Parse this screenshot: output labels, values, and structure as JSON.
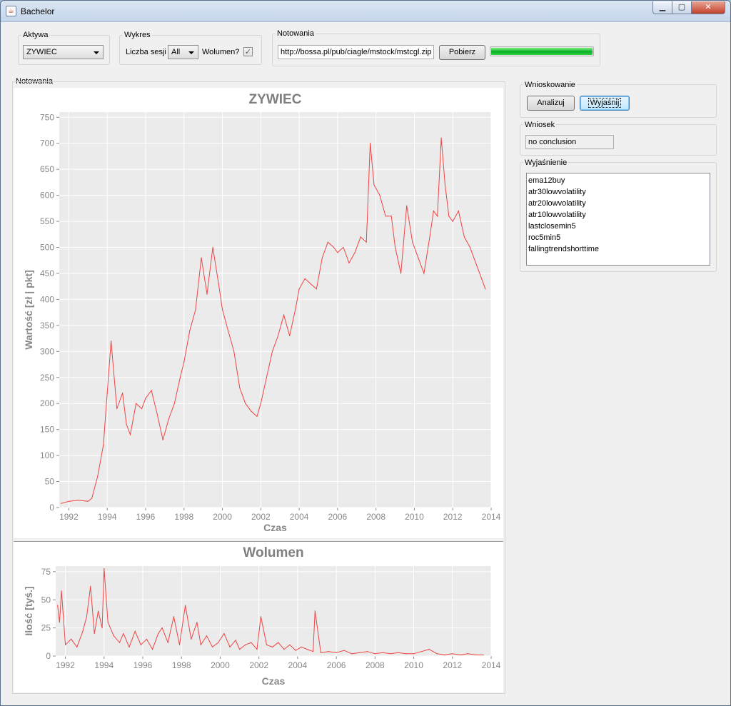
{
  "window": {
    "title": "Bachelor",
    "app_icon": "java-cup-icon",
    "close_glyph": "✕",
    "min_glyph": "▁",
    "max_glyph": "▢"
  },
  "aktywa": {
    "label": "Aktywa",
    "selected": "ZYWIEC"
  },
  "wykres": {
    "label": "Wykres",
    "sessions_label": "Liczba sesji",
    "sessions_value": "All",
    "volume_label": "Wolumen?",
    "volume_checked": true
  },
  "notowania_top": {
    "label": "Notowania",
    "url": "http://bossa.pl/pub/ciagle/mstock/mstcgl.zip",
    "download_button": "Pobierz",
    "progress": 1.0
  },
  "notowania_panel": {
    "label": "Notowania"
  },
  "wnioskowanie": {
    "label": "Wnioskowanie",
    "analyze_button": "Analizuj",
    "explain_button": "Wyjaśnij"
  },
  "wniosek": {
    "label": "Wniosek",
    "value": "no conclusion"
  },
  "wyjasnienie": {
    "label": "Wyjaśnienie",
    "items": [
      "ema12buy",
      "atr30lowvolatility",
      "atr20lowvolatility",
      "atr10lowvolatility",
      "lastclosemin5",
      "roc5min5",
      "fallingtrendshorttime"
    ]
  },
  "colors": {
    "series": "#ee4444",
    "plot_bg": "#ebebeb",
    "axis_text": "#888888",
    "title_text": "#7f7f7f"
  },
  "chart_data": [
    {
      "type": "line",
      "title": "ZYWIEC",
      "xlabel": "Czas",
      "ylabel": "Wartość [zł | pkt]",
      "xlim": [
        1991.5,
        2014.0
      ],
      "ylim": [
        0,
        760
      ],
      "xticks": [
        "1992",
        "1994",
        "1996",
        "1998",
        "2000",
        "2002",
        "2004",
        "2006",
        "2008",
        "2010",
        "2012",
        "2014"
      ],
      "yticks": [
        "0",
        "50",
        "100",
        "150",
        "200",
        "250",
        "300",
        "350",
        "400",
        "450",
        "500",
        "550",
        "600",
        "650",
        "700",
        "750"
      ],
      "grid": true,
      "series": [
        {
          "x": [
            1991.6,
            1992.0,
            1992.5,
            1993.0,
            1993.2,
            1993.5,
            1993.8,
            1994.0,
            1994.2,
            1994.5,
            1994.8,
            1995.0,
            1995.2,
            1995.5,
            1995.8,
            1996.0,
            1996.3,
            1996.6,
            1996.9,
            1997.2,
            1997.5,
            1997.8,
            1998.0,
            1998.3,
            1998.6,
            1998.9,
            1999.2,
            1999.5,
            1999.8,
            2000.0,
            2000.3,
            2000.6,
            2000.9,
            2001.2,
            2001.5,
            2001.8,
            2002.0,
            2002.3,
            2002.6,
            2002.9,
            2003.2,
            2003.5,
            2003.8,
            2004.0,
            2004.3,
            2004.6,
            2004.9,
            2005.2,
            2005.5,
            2005.8,
            2006.0,
            2006.3,
            2006.6,
            2006.9,
            2007.2,
            2007.5,
            2007.7,
            2007.9,
            2008.2,
            2008.5,
            2008.8,
            2009.0,
            2009.3,
            2009.6,
            2009.9,
            2010.2,
            2010.5,
            2010.8,
            2011.0,
            2011.2,
            2011.4,
            2011.6,
            2011.8,
            2012.0,
            2012.3,
            2012.6,
            2012.9,
            2013.2,
            2013.5,
            2013.7
          ],
          "y": [
            8,
            12,
            14,
            12,
            18,
            60,
            120,
            220,
            320,
            190,
            220,
            160,
            140,
            200,
            190,
            210,
            225,
            180,
            130,
            170,
            200,
            250,
            280,
            340,
            380,
            480,
            410,
            500,
            430,
            380,
            340,
            300,
            230,
            200,
            185,
            175,
            200,
            250,
            300,
            330,
            370,
            330,
            380,
            420,
            440,
            430,
            420,
            480,
            510,
            500,
            490,
            500,
            470,
            490,
            520,
            510,
            700,
            620,
            600,
            560,
            560,
            500,
            450,
            580,
            510,
            480,
            450,
            520,
            570,
            560,
            710,
            620,
            560,
            550,
            570,
            520,
            500,
            470,
            440,
            420
          ]
        }
      ]
    },
    {
      "type": "line",
      "title": "Wolumen",
      "xlabel": "Czas",
      "ylabel": "Ilość [tyś.]",
      "xlim": [
        1991.5,
        2014.0
      ],
      "ylim": [
        0,
        80
      ],
      "xticks": [
        "1992",
        "1994",
        "1996",
        "1998",
        "2000",
        "2002",
        "2004",
        "2006",
        "2008",
        "2010",
        "2012",
        "2014"
      ],
      "yticks": [
        "0",
        "25",
        "50",
        "75"
      ],
      "grid": true,
      "series": [
        {
          "x": [
            1991.6,
            1991.7,
            1991.8,
            1992.0,
            1992.3,
            1992.6,
            1992.9,
            1993.1,
            1993.3,
            1993.5,
            1993.7,
            1993.9,
            1994.0,
            1994.2,
            1994.5,
            1994.8,
            1995.0,
            1995.3,
            1995.6,
            1995.9,
            1996.2,
            1996.5,
            1996.8,
            1997.0,
            1997.3,
            1997.6,
            1997.9,
            1998.2,
            1998.5,
            1998.8,
            1999.0,
            1999.3,
            1999.6,
            1999.9,
            2000.2,
            2000.5,
            2000.8,
            2001.0,
            2001.3,
            2001.6,
            2001.9,
            2002.1,
            2002.4,
            2002.7,
            2003.0,
            2003.3,
            2003.6,
            2003.9,
            2004.2,
            2004.5,
            2004.8,
            2004.9,
            2005.2,
            2005.6,
            2006.0,
            2006.4,
            2006.8,
            2007.2,
            2007.6,
            2008.0,
            2008.4,
            2008.8,
            2009.2,
            2009.6,
            2010.0,
            2010.4,
            2010.8,
            2011.2,
            2011.6,
            2012.0,
            2012.4,
            2012.8,
            2013.2,
            2013.6
          ],
          "y": [
            45,
            30,
            58,
            10,
            15,
            8,
            22,
            35,
            62,
            20,
            40,
            25,
            78,
            30,
            18,
            12,
            20,
            8,
            22,
            10,
            15,
            6,
            20,
            25,
            12,
            35,
            10,
            45,
            15,
            30,
            10,
            18,
            8,
            12,
            20,
            8,
            14,
            6,
            10,
            12,
            6,
            35,
            10,
            8,
            12,
            6,
            10,
            5,
            8,
            6,
            4,
            40,
            3,
            4,
            3,
            5,
            2,
            3,
            4,
            2,
            3,
            2,
            3,
            2,
            2,
            4,
            6,
            2,
            1,
            2,
            1,
            2,
            1,
            1
          ]
        }
      ]
    }
  ]
}
